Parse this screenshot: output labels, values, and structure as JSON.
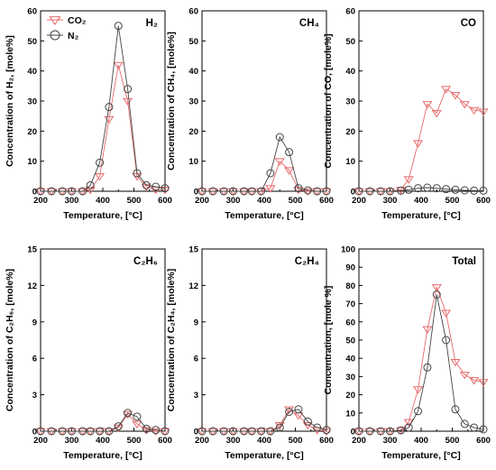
{
  "colors": {
    "co2": "#e8696b",
    "n2": "#444444"
  },
  "legend": {
    "co2_label": "CO₂",
    "n2_label": "N₂"
  },
  "chart_data": [
    {
      "id": "h2",
      "type": "line",
      "panel_label": "H₂",
      "xlabel": "Temperature, [°C]",
      "ylabel": "Concentration of H₂, [mole%]",
      "xlim": [
        200,
        600
      ],
      "ylim": [
        0,
        60
      ],
      "xticks": [
        200,
        300,
        400,
        500,
        600
      ],
      "yticks": [
        0,
        10,
        20,
        30,
        40,
        50,
        60
      ],
      "grid": false,
      "series": [
        {
          "name": "CO₂",
          "marker": "triangle-down",
          "x": [
            200,
            235,
            270,
            300,
            335,
            360,
            390,
            420,
            450,
            480,
            510,
            540,
            570,
            600
          ],
          "y": [
            0,
            0,
            0,
            0,
            0,
            0.5,
            5,
            24,
            42,
            30,
            5,
            1.5,
            0.5,
            0.5
          ]
        },
        {
          "name": "N₂",
          "marker": "circle",
          "x": [
            200,
            235,
            270,
            300,
            335,
            360,
            390,
            420,
            450,
            480,
            510,
            540,
            570,
            600
          ],
          "y": [
            0,
            0,
            0,
            0,
            0,
            2,
            9.5,
            28,
            55,
            34,
            6,
            2,
            1.5,
            1
          ]
        }
      ]
    },
    {
      "id": "ch4",
      "type": "line",
      "panel_label": "CH₄",
      "xlabel": "Temperature, [°C]",
      "ylabel": "Concentration of CH₄, [mole%]",
      "xlim": [
        200,
        600
      ],
      "ylim": [
        0,
        60
      ],
      "xticks": [
        200,
        300,
        400,
        500,
        600
      ],
      "yticks": [
        0,
        10,
        20,
        30,
        40,
        50,
        60
      ],
      "grid": false,
      "series": [
        {
          "name": "CO₂",
          "marker": "triangle-down",
          "x": [
            200,
            235,
            270,
            300,
            335,
            360,
            390,
            420,
            450,
            480,
            510,
            540,
            570,
            600
          ],
          "y": [
            0,
            0,
            0,
            0,
            0,
            0,
            0,
            1,
            10,
            7,
            0.5,
            0,
            0,
            0
          ]
        },
        {
          "name": "N₂",
          "marker": "circle",
          "x": [
            200,
            235,
            270,
            300,
            335,
            360,
            390,
            420,
            450,
            480,
            510,
            540,
            570,
            600
          ],
          "y": [
            0,
            0,
            0,
            0,
            0,
            0,
            0,
            6,
            18,
            13,
            1,
            0.3,
            0,
            0
          ]
        }
      ]
    },
    {
      "id": "co",
      "type": "line",
      "panel_label": "CO",
      "xlabel": "Temperature, [°C]",
      "ylabel": "Concentration of CO, [mole%]",
      "xlim": [
        200,
        600
      ],
      "ylim": [
        0,
        60
      ],
      "xticks": [
        200,
        300,
        400,
        500,
        600
      ],
      "yticks": [
        0,
        10,
        20,
        30,
        40,
        50,
        60
      ],
      "grid": false,
      "series": [
        {
          "name": "CO₂",
          "marker": "triangle-down",
          "x": [
            200,
            235,
            270,
            300,
            335,
            360,
            390,
            420,
            450,
            480,
            510,
            540,
            570,
            600
          ],
          "y": [
            0,
            0,
            0,
            0,
            0.5,
            4,
            16,
            29,
            26,
            34,
            32,
            29,
            27,
            26.5
          ]
        },
        {
          "name": "N₂",
          "marker": "circle",
          "x": [
            200,
            235,
            270,
            300,
            335,
            360,
            390,
            420,
            450,
            480,
            510,
            540,
            570,
            600
          ],
          "y": [
            0,
            0,
            0,
            0,
            0.2,
            0.5,
            1,
            1.2,
            1,
            0.7,
            0.5,
            0.3,
            0.2,
            0.2
          ]
        }
      ]
    },
    {
      "id": "c2h6",
      "type": "line",
      "panel_label": "C₂H₆",
      "xlabel": "Temperature, [°C]",
      "ylabel": "Concentration of C₂H₆, [mole%]",
      "xlim": [
        200,
        600
      ],
      "ylim": [
        0,
        15
      ],
      "xticks": [
        200,
        300,
        400,
        500,
        600
      ],
      "yticks": [
        0,
        3,
        6,
        9,
        12,
        15
      ],
      "grid": false,
      "series": [
        {
          "name": "CO₂",
          "marker": "triangle-down",
          "x": [
            200,
            235,
            270,
            300,
            335,
            360,
            390,
            420,
            450,
            480,
            510,
            540,
            570,
            600
          ],
          "y": [
            0,
            0,
            0,
            0,
            0,
            0,
            0,
            0,
            0.3,
            1.4,
            0.6,
            0.1,
            0,
            0
          ]
        },
        {
          "name": "N₂",
          "marker": "circle",
          "x": [
            200,
            235,
            270,
            300,
            335,
            360,
            390,
            420,
            450,
            480,
            510,
            540,
            570,
            600
          ],
          "y": [
            0,
            0,
            0,
            0,
            0,
            0,
            0,
            0,
            0.4,
            1.5,
            1.2,
            0.2,
            0.1,
            0
          ]
        }
      ]
    },
    {
      "id": "c2h4",
      "type": "line",
      "panel_label": "C₂H₄",
      "xlabel": "Temperature, [°C]",
      "ylabel": "Concentration of C₂H₄, [mole%]",
      "xlim": [
        200,
        600
      ],
      "ylim": [
        0,
        15
      ],
      "xticks": [
        200,
        300,
        400,
        500,
        600
      ],
      "yticks": [
        0,
        3,
        6,
        9,
        12,
        15
      ],
      "grid": false,
      "series": [
        {
          "name": "CO₂",
          "marker": "triangle-down",
          "x": [
            200,
            235,
            270,
            300,
            335,
            360,
            390,
            420,
            450,
            480,
            510,
            540,
            570,
            600
          ],
          "y": [
            0,
            0,
            0,
            0,
            0,
            0,
            0,
            0,
            0.5,
            1.8,
            1.3,
            0.5,
            0.1,
            0
          ]
        },
        {
          "name": "N₂",
          "marker": "circle",
          "x": [
            200,
            235,
            270,
            300,
            335,
            360,
            390,
            420,
            450,
            480,
            510,
            540,
            570,
            600
          ],
          "y": [
            0,
            0,
            0,
            0,
            0,
            0,
            0,
            0,
            0.3,
            1.6,
            1.8,
            0.8,
            0.3,
            0.1
          ]
        }
      ]
    },
    {
      "id": "total",
      "type": "line",
      "panel_label": "Total",
      "xlabel": "Temperature, [°C]",
      "ylabel": "Concentration, [mole %]",
      "xlim": [
        200,
        600
      ],
      "ylim": [
        0,
        100
      ],
      "xticks": [
        200,
        300,
        400,
        500,
        600
      ],
      "yticks": [
        0,
        10,
        20,
        30,
        40,
        50,
        60,
        70,
        80,
        90,
        100
      ],
      "grid": false,
      "series": [
        {
          "name": "CO₂",
          "marker": "triangle-down",
          "x": [
            200,
            235,
            270,
            300,
            335,
            360,
            390,
            420,
            450,
            480,
            510,
            540,
            570,
            600
          ],
          "y": [
            0,
            0,
            0,
            0,
            0.5,
            5,
            23,
            56,
            79,
            65,
            38,
            31,
            28,
            27
          ]
        },
        {
          "name": "N₂",
          "marker": "circle",
          "x": [
            200,
            235,
            270,
            300,
            335,
            360,
            390,
            420,
            450,
            480,
            510,
            540,
            570,
            600
          ],
          "y": [
            0,
            0,
            0,
            0,
            0.5,
            2,
            11,
            35,
            75,
            50,
            12,
            4,
            2,
            1
          ]
        }
      ]
    }
  ]
}
